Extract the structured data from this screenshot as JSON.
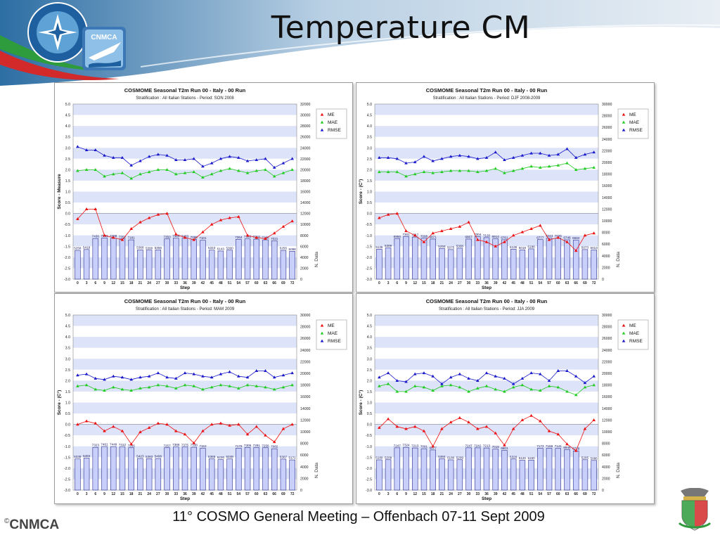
{
  "slide": {
    "title": "Temperature CM",
    "footer": "11° COSMO General Meeting – Offenbach 07-11 Sept 2009",
    "brand": "CNMCA",
    "brand_mark": "©",
    "logo_text": "CNMCA",
    "logo_ring_text": "SERVIZIO METEOROLOGICO DELL'AERONAUTICA"
  },
  "colors": {
    "me": "#ee1111",
    "mae": "#22cc22",
    "rmse": "#1a1acc",
    "bars": "#c9cffb",
    "band": "#dde3f8",
    "header_blue": "#4f8fc2"
  },
  "chart_data": [
    {
      "type": "line",
      "title": "COSMOME Seasonal T2m Run 00 - Italy  - 00 Run",
      "subtitle": "Stratification : All Italian Stations - Period: SON 2008",
      "xlabel": "Step",
      "ylabel": "Score - Measure",
      "y2label": "N. Data",
      "ylim": [
        -3.0,
        5.0
      ],
      "y2lim": [
        0,
        32000
      ],
      "yticks": [
        "5.0",
        "4.5",
        "4.0",
        "3.5",
        "3.0",
        "2.5",
        "2.0",
        "1.5",
        "1.0",
        "0.5",
        "0.0",
        "-0.5",
        "-1.0",
        "-1.5",
        "-2.0",
        "-2.5",
        "-3.0"
      ],
      "y2ticks": [
        "32000",
        "30000",
        "28000",
        "26000",
        "24000",
        "22000",
        "20000",
        "18000",
        "16000",
        "14000",
        "12000",
        "10000",
        "8000",
        "6000",
        "4000",
        "2000",
        "0"
      ],
      "x": [
        0,
        3,
        6,
        9,
        12,
        15,
        18,
        21,
        24,
        27,
        30,
        33,
        36,
        39,
        42,
        45,
        48,
        51,
        54,
        57,
        60,
        63,
        66,
        69,
        72
      ],
      "legend": [
        "ME",
        "MAE",
        "RMSE"
      ],
      "series": [
        {
          "name": "ME",
          "values": [
            -0.25,
            0.2,
            0.2,
            -1.0,
            -1.1,
            -1.2,
            -0.7,
            -0.4,
            -0.2,
            -0.05,
            0.0,
            -0.95,
            -1.1,
            -1.2,
            -0.85,
            -0.5,
            -0.3,
            -0.2,
            -0.15,
            -1.0,
            -1.1,
            -1.15,
            -0.9,
            -0.6,
            -0.35
          ]
        },
        {
          "name": "MAE",
          "values": [
            1.95,
            2.0,
            2.0,
            1.7,
            1.8,
            1.85,
            1.6,
            1.8,
            1.9,
            2.0,
            2.0,
            1.8,
            1.85,
            1.9,
            1.65,
            1.8,
            1.95,
            2.05,
            1.95,
            1.85,
            1.95,
            2.0,
            1.7,
            1.85,
            2.0
          ]
        },
        {
          "name": "RMSE",
          "values": [
            3.05,
            2.9,
            2.9,
            2.65,
            2.55,
            2.55,
            2.2,
            2.4,
            2.6,
            2.7,
            2.65,
            2.45,
            2.45,
            2.5,
            2.15,
            2.3,
            2.5,
            2.6,
            2.55,
            2.4,
            2.45,
            2.5,
            2.1,
            2.3,
            2.5
          ]
        }
      ],
      "bars": [
        5258,
        5418,
        7436,
        7531,
        7488,
        7352,
        7181,
        5368,
        5300,
        5359,
        7350,
        7486,
        7483,
        7269,
        7101,
        5310,
        5143,
        5300,
        7264,
        7360,
        7318,
        7188,
        7021,
        5255,
        5098
      ],
      "bar_labels": [
        "5258",
        "5418",
        "7436",
        "7531",
        "7488",
        "7352",
        "7181",
        "5368",
        "5300",
        "5359",
        "7350",
        "7486",
        "7483",
        "7269",
        "7101",
        "5310",
        "5143",
        "5300",
        "7264",
        "7360",
        "7318",
        "7188",
        "7021",
        "5255",
        "5098"
      ]
    },
    {
      "type": "line",
      "title": "COSMOME Seasonal T2m Run 00 - Italy  - 00 Run",
      "subtitle": "Stratification : All Italian Stations - Period: DJF 2008-2009",
      "xlabel": "Step",
      "ylabel": "Score - (C°)",
      "y2label": "N. Data",
      "ylim": [
        -3.0,
        5.0
      ],
      "y2lim": [
        0,
        30000
      ],
      "yticks": [
        "5.0",
        "4.5",
        "4.0",
        "3.5",
        "3.0",
        "2.5",
        "2.0",
        "1.5",
        "1.0",
        "0.5",
        "0.0",
        "-0.5",
        "-1.0",
        "-1.5",
        "-2.0",
        "-2.5",
        "-3.0"
      ],
      "y2ticks": [
        "30000",
        "28000",
        "26000",
        "24000",
        "22000",
        "20000",
        "18000",
        "16000",
        "14000",
        "12000",
        "10000",
        "8000",
        "6000",
        "4000",
        "2000",
        "0"
      ],
      "x": [
        0,
        3,
        6,
        9,
        12,
        15,
        18,
        21,
        24,
        27,
        30,
        33,
        36,
        39,
        42,
        45,
        48,
        51,
        54,
        57,
        60,
        63,
        66,
        69,
        72
      ],
      "legend": [
        "ME",
        "MAE",
        "RMSE"
      ],
      "series": [
        {
          "name": "ME",
          "values": [
            -0.2,
            -0.05,
            0.0,
            -0.8,
            -1.0,
            -1.3,
            -0.9,
            -0.8,
            -0.7,
            -0.6,
            -0.4,
            -1.2,
            -1.3,
            -1.5,
            -1.3,
            -1.0,
            -0.85,
            -0.7,
            -0.55,
            -1.2,
            -1.1,
            -1.3,
            -1.7,
            -1.0,
            -0.9
          ]
        },
        {
          "name": "MAE",
          "values": [
            1.9,
            1.9,
            1.9,
            1.7,
            1.8,
            1.9,
            1.85,
            1.9,
            1.95,
            1.95,
            1.95,
            1.9,
            1.95,
            2.05,
            1.85,
            1.95,
            2.05,
            2.15,
            2.1,
            2.15,
            2.2,
            2.3,
            2.0,
            2.05,
            2.1
          ]
        },
        {
          "name": "RMSE",
          "values": [
            2.55,
            2.55,
            2.5,
            2.3,
            2.35,
            2.6,
            2.4,
            2.5,
            2.6,
            2.65,
            2.6,
            2.5,
            2.55,
            2.8,
            2.45,
            2.55,
            2.65,
            2.75,
            2.75,
            2.65,
            2.7,
            2.95,
            2.55,
            2.7,
            2.8
          ]
        }
      ],
      "bars": [
        5135,
        5369,
        6956,
        7301,
        7217,
        7008,
        6871,
        5258,
        5075,
        5308,
        6867,
        7304,
        7120,
        6914,
        6761,
        5135,
        5018,
        5186,
        6777,
        7043,
        7026,
        6746,
        6684,
        5073,
        5013
      ],
      "bar_labels": [
        "5135",
        "5369",
        "6956",
        "7301",
        "7217",
        "7008",
        "6871",
        "5258",
        "5075",
        "5308",
        "6867",
        "7304",
        "7120",
        "6914",
        "6761",
        "5135",
        "5018",
        "5186",
        "6777",
        "7043",
        "7026",
        "6746",
        "6684",
        "5073",
        "5013"
      ]
    },
    {
      "type": "line",
      "title": "COSMOME Seasonal T2m Run 00 - Italy  - 00 Run",
      "subtitle": "Stratification : All Italian Stations - Period: MAM 2009",
      "xlabel": "Step",
      "ylabel": "Score - (C°)",
      "y2label": "N. Data",
      "ylim": [
        -3.0,
        5.0
      ],
      "y2lim": [
        0,
        30000
      ],
      "yticks": [
        "5.0",
        "4.5",
        "4.0",
        "3.5",
        "3.0",
        "2.5",
        "2.0",
        "1.5",
        "1.0",
        "0.5",
        "0.0",
        "-0.5",
        "-1.0",
        "-1.5",
        "-2.0",
        "-2.5",
        "-3.0"
      ],
      "y2ticks": [
        "30000",
        "28000",
        "26000",
        "24000",
        "22000",
        "20000",
        "18000",
        "16000",
        "14000",
        "12000",
        "10000",
        "8000",
        "6000",
        "4000",
        "2000",
        "0"
      ],
      "x": [
        0,
        3,
        6,
        9,
        12,
        15,
        18,
        21,
        24,
        27,
        30,
        33,
        36,
        39,
        42,
        45,
        48,
        51,
        54,
        57,
        60,
        63,
        66,
        69,
        72
      ],
      "legend": [
        "ME",
        "MAE",
        "RMSE"
      ],
      "series": [
        {
          "name": "ME",
          "values": [
            0.0,
            0.15,
            0.05,
            -0.3,
            -0.1,
            -0.3,
            -0.9,
            -0.35,
            -0.15,
            0.05,
            0.0,
            -0.3,
            -0.45,
            -0.85,
            -0.3,
            0.0,
            0.05,
            -0.05,
            0.0,
            -0.45,
            -0.1,
            -0.5,
            -0.8,
            -0.2,
            0.0
          ]
        },
        {
          "name": "MAE",
          "values": [
            1.75,
            1.8,
            1.6,
            1.55,
            1.7,
            1.6,
            1.55,
            1.65,
            1.7,
            1.8,
            1.75,
            1.65,
            1.8,
            1.75,
            1.6,
            1.7,
            1.8,
            1.75,
            1.65,
            1.8,
            1.75,
            1.7,
            1.6,
            1.7,
            1.8
          ]
        },
        {
          "name": "RMSE",
          "values": [
            2.25,
            2.3,
            2.1,
            2.05,
            2.2,
            2.15,
            2.05,
            2.15,
            2.2,
            2.35,
            2.15,
            2.1,
            2.35,
            2.3,
            2.2,
            2.15,
            2.3,
            2.4,
            2.2,
            2.15,
            2.45,
            2.45,
            2.15,
            2.25,
            2.35
          ]
        }
      ],
      "bars": [
        5339,
        5484,
        7323,
        7461,
        7449,
        7412,
        7256,
        5423,
        5383,
        5408,
        7257,
        7388,
        7375,
        7338,
        7153,
        5365,
        5226,
        5349,
        7176,
        7305,
        7291,
        7256,
        7082,
        5307,
        5171
      ],
      "bar_labels": [
        "5339",
        "5484",
        "7323",
        "7461",
        "7449",
        "7412",
        "7256",
        "5423",
        "5383",
        "5408",
        "7257",
        "7388",
        "7375",
        "7338",
        "7153",
        "5365",
        "5226",
        "5349",
        "7176",
        "7305",
        "7291",
        "7256",
        "7082",
        "5307",
        "5171"
      ]
    },
    {
      "type": "line",
      "title": "COSMOME Seasonal T2m Run 00 - Italy  - 00 Run",
      "subtitle": "Stratification : All Italian Stations - Period: JJA 2009",
      "xlabel": "Step",
      "ylabel": "Score - (C°)",
      "y2label": "N. Data",
      "ylim": [
        -3.0,
        5.0
      ],
      "y2lim": [
        0,
        30000
      ],
      "yticks": [
        "5.0",
        "4.5",
        "4.0",
        "3.5",
        "3.0",
        "2.5",
        "2.0",
        "1.5",
        "1.0",
        "0.5",
        "0.0",
        "-0.5",
        "-1.0",
        "-1.5",
        "-2.0",
        "-2.5",
        "-3.0"
      ],
      "y2ticks": [
        "30000",
        "28000",
        "26000",
        "24000",
        "22000",
        "20000",
        "18000",
        "16000",
        "14000",
        "12000",
        "10000",
        "8000",
        "6000",
        "4000",
        "2000",
        "0"
      ],
      "x": [
        0,
        3,
        6,
        9,
        12,
        15,
        18,
        21,
        24,
        27,
        30,
        33,
        36,
        39,
        42,
        45,
        48,
        51,
        54,
        57,
        60,
        63,
        66,
        69,
        72
      ],
      "legend": [
        "ME",
        "MAE",
        "RMSE"
      ],
      "series": [
        {
          "name": "ME",
          "values": [
            -0.15,
            0.25,
            -0.1,
            -0.2,
            -0.1,
            -0.3,
            -1.0,
            -0.2,
            0.1,
            0.3,
            0.1,
            -0.2,
            -0.1,
            -0.4,
            -0.95,
            -0.2,
            0.2,
            0.4,
            0.15,
            -0.3,
            -0.45,
            -0.9,
            -1.2,
            -0.2,
            0.2
          ]
        },
        {
          "name": "MAE",
          "values": [
            1.75,
            1.85,
            1.5,
            1.5,
            1.75,
            1.7,
            1.55,
            1.75,
            1.8,
            1.7,
            1.5,
            1.65,
            1.75,
            1.6,
            1.5,
            1.7,
            1.8,
            1.6,
            1.55,
            1.75,
            1.7,
            1.5,
            1.35,
            1.7,
            1.8
          ]
        },
        {
          "name": "RMSE",
          "values": [
            2.15,
            2.35,
            2.0,
            1.95,
            2.3,
            2.35,
            2.2,
            1.85,
            2.15,
            2.3,
            2.1,
            2.0,
            2.35,
            2.2,
            2.1,
            1.85,
            2.1,
            2.35,
            2.3,
            2.0,
            2.45,
            2.45,
            2.2,
            1.9,
            2.2
          ]
        }
      ],
      "bars": [
        5180,
        5209,
        7247,
        7324,
        7213,
        7091,
        6877,
        5384,
        5180,
        5209,
        7247,
        7242,
        7213,
        7019,
        6801,
        5326,
        5120,
        5150,
        7173,
        7168,
        7141,
        6945,
        6729,
        5205,
        5086
      ],
      "bar_labels": [
        "5180",
        "5209",
        "7247",
        "7324",
        "7213",
        "7091",
        "6877",
        "5384",
        "5180",
        "5209",
        "7247",
        "7242",
        "7213",
        "7019",
        "6801",
        "5326",
        "5120",
        "5150",
        "7173",
        "7168",
        "7141",
        "6945",
        "6729",
        "5205",
        "5086"
      ]
    }
  ]
}
